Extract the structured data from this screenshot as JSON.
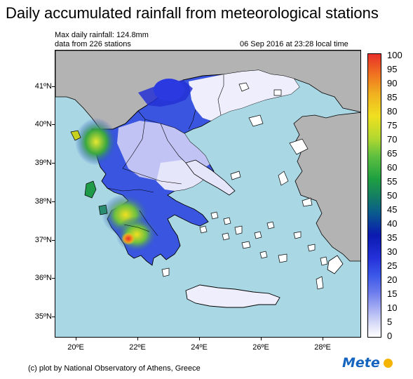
{
  "title": "Daily accumulated rainfall from meteorological stations",
  "max_rainfall": "Max daily rainfall: 124.8mm",
  "station_count": "data from 226 stations",
  "timestamp": "06 Sep 2016 at 23:28 local time",
  "credit": "(c) plot by National Observatory of Athens, Greece",
  "logo_text": "Mete",
  "lat_ticks": [
    "41ºN",
    "40ºN",
    "39ºN",
    "38ºN",
    "37ºN",
    "36ºN",
    "35ºN"
  ],
  "lon_ticks": [
    "20ºE",
    "22ºE",
    "24ºE",
    "26ºE",
    "28ºE"
  ],
  "colorbar_labels": [
    "100",
    "95",
    "90",
    "85",
    "80",
    "75",
    "70",
    "65",
    "60",
    "55",
    "50",
    "45",
    "40",
    "35",
    "30",
    "25",
    "20",
    "15",
    "10",
    "5",
    "0"
  ],
  "colors": {
    "sea": "#a9d8e4",
    "land_outside": "#b3b3b3",
    "zero_rain": "#ffffff",
    "light_rain": "#8e8ef0",
    "moderate_rain": "#2828d8",
    "heavy_rain": "#1a9c3a",
    "very_heavy_rain": "#f0e020",
    "extreme_rain": "#e8302a"
  },
  "icons": [
    "sun-icon"
  ]
}
